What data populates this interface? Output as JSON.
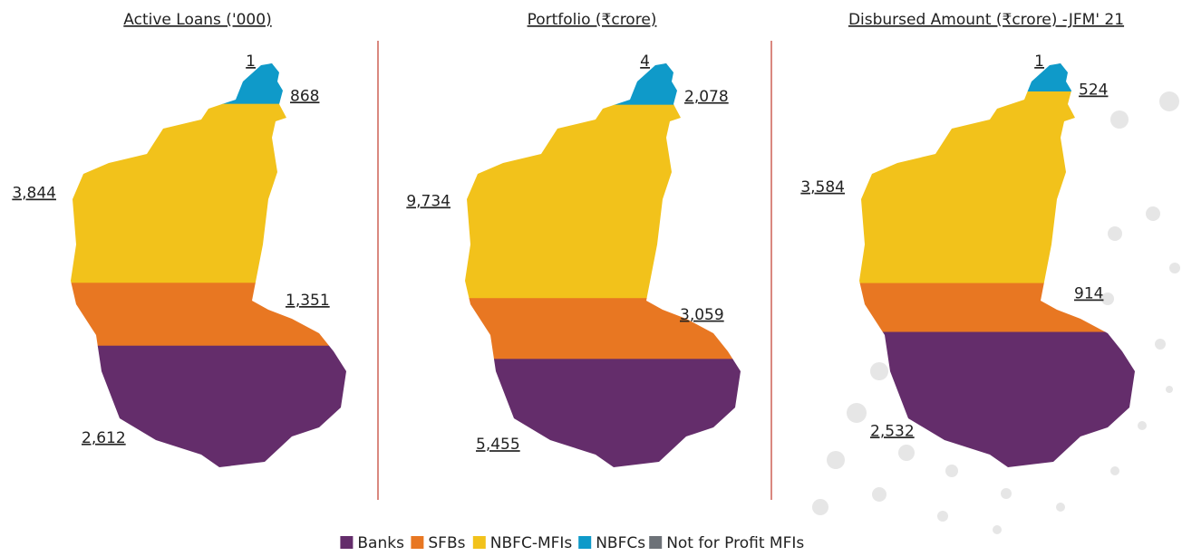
{
  "legend": [
    {
      "name": "Banks",
      "color": "#642d6b"
    },
    {
      "name": "SFBs",
      "color": "#e87722"
    },
    {
      "name": "NBFC-MFIs",
      "color": "#f2c21b"
    },
    {
      "name": "NBFCs",
      "color": "#0f9ac9"
    },
    {
      "name": "Not for Profit MFIs",
      "color": "#6d7278"
    }
  ],
  "chart_data": [
    {
      "type": "map-bands",
      "title": "Active Loans ('000)",
      "values": [
        2612,
        1351,
        3844,
        868,
        1
      ],
      "value_labels": [
        "2,612",
        "1,351",
        "3,844",
        "868",
        "1"
      ]
    },
    {
      "type": "map-bands",
      "title": "Portfolio (₹crore)",
      "values": [
        5455,
        3059,
        9734,
        2078,
        4
      ],
      "value_labels": [
        "5,455",
        "3,059",
        "9,734",
        "2,078",
        "4"
      ]
    },
    {
      "type": "map-bands",
      "title": "Disbursed Amount (₹crore) -JFM' 21",
      "values": [
        2532,
        914,
        3584,
        524,
        1
      ],
      "value_labels": [
        "2,532",
        "914",
        "3,584",
        "524",
        "1"
      ]
    }
  ]
}
